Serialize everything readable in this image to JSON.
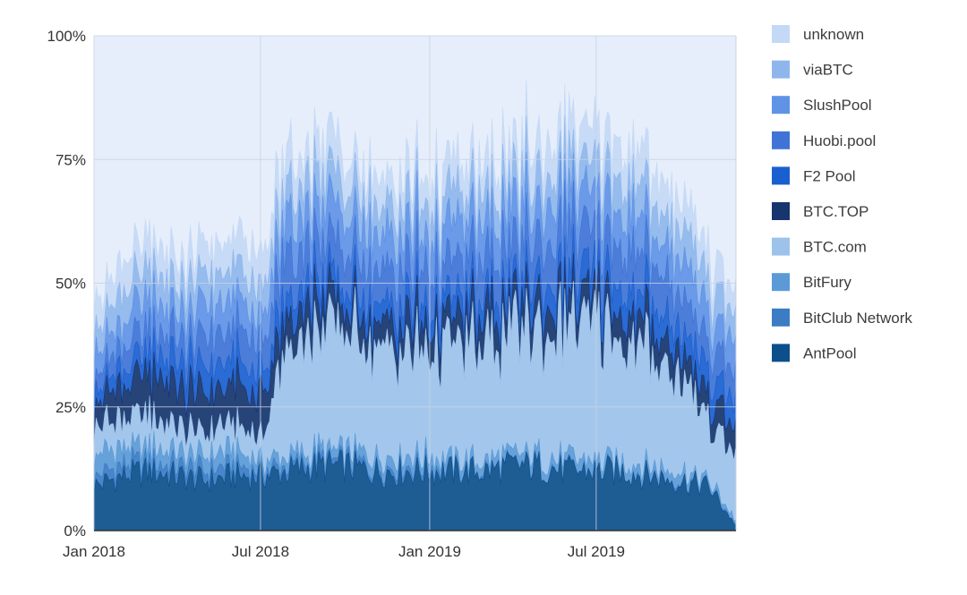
{
  "chart_data": {
    "type": "area",
    "stacked": true,
    "ylim": [
      0,
      100
    ],
    "y_ticks": [
      "0%",
      "25%",
      "50%",
      "75%",
      "100%"
    ],
    "x_ticks": [
      {
        "label": "Jan 2018",
        "date": "2018-01-01"
      },
      {
        "label": "Jul 2018",
        "date": "2018-07-01"
      },
      {
        "label": "Jan 2019",
        "date": "2019-01-01"
      },
      {
        "label": "Jul 2019",
        "date": "2019-07-01"
      }
    ],
    "x_range": [
      "2018-01-01",
      "2019-11-30"
    ],
    "grid": true,
    "legend_position": "right",
    "x": [
      "2018-01-01",
      "2018-02-01",
      "2018-03-01",
      "2018-04-01",
      "2018-05-01",
      "2018-06-01",
      "2018-07-01",
      "2018-08-01",
      "2018-09-01",
      "2018-10-01",
      "2018-11-01",
      "2018-12-01",
      "2019-01-01",
      "2019-02-01",
      "2019-03-01",
      "2019-04-01",
      "2019-05-01",
      "2019-06-01",
      "2019-07-01",
      "2019-08-01",
      "2019-09-01",
      "2019-10-01",
      "2019-11-01",
      "2019-11-30"
    ],
    "series": [
      {
        "name": "AntPool",
        "color": "#0d4f8b",
        "values": [
          9,
          11,
          12,
          11,
          10,
          11,
          11,
          12,
          13,
          13,
          12,
          12,
          12,
          12,
          12,
          13,
          13,
          12,
          12,
          12,
          11,
          10,
          9,
          1
        ]
      },
      {
        "name": "BitClub Network",
        "color": "#3b7cc4",
        "values": [
          2,
          2,
          2,
          2,
          2,
          2,
          1,
          1,
          1,
          1,
          1,
          1,
          1,
          0,
          0,
          0,
          0,
          0,
          0,
          0,
          0,
          0,
          0,
          0
        ]
      },
      {
        "name": "BitFury",
        "color": "#5b9ad6",
        "values": [
          4,
          4,
          3,
          3,
          3,
          3,
          2,
          2,
          2,
          2,
          2,
          2,
          2,
          2,
          2,
          2,
          2,
          2,
          2,
          2,
          2,
          2,
          1,
          1
        ]
      },
      {
        "name": "BTC.com",
        "color": "#9dc3ea",
        "values": [
          6,
          6,
          6,
          5,
          5,
          5,
          5,
          23,
          24,
          24,
          23,
          22,
          22,
          23,
          23,
          24,
          26,
          27,
          27,
          25,
          23,
          20,
          12,
          13
        ]
      },
      {
        "name": "BTC.TOP",
        "color": "#17356e",
        "values": [
          5,
          6,
          8,
          8,
          8,
          8,
          8,
          6,
          6,
          5,
          5,
          5,
          5,
          5,
          6,
          5,
          5,
          5,
          5,
          5,
          5,
          5,
          5,
          5
        ]
      },
      {
        "name": "F2 Pool",
        "color": "#1a5fd0",
        "values": [
          3,
          3,
          4,
          5,
          5,
          5,
          5,
          4,
          4,
          4,
          4,
          4,
          4,
          4,
          4,
          4,
          5,
          5,
          5,
          5,
          5,
          5,
          5,
          5
        ]
      },
      {
        "name": "Huobi.pool",
        "color": "#3f74d6",
        "values": [
          3,
          4,
          5,
          5,
          6,
          6,
          7,
          8,
          8,
          7,
          7,
          7,
          7,
          7,
          8,
          8,
          8,
          9,
          8,
          8,
          8,
          7,
          6,
          6
        ]
      },
      {
        "name": "SlushPool",
        "color": "#5f93e6",
        "values": [
          5,
          5,
          6,
          5,
          6,
          6,
          6,
          7,
          7,
          7,
          7,
          7,
          7,
          7,
          7,
          7,
          7,
          7,
          7,
          7,
          7,
          7,
          6,
          6
        ]
      },
      {
        "name": "viaBTC",
        "color": "#8fb6ec",
        "values": [
          5,
          6,
          6,
          5,
          6,
          6,
          6,
          6,
          6,
          6,
          6,
          6,
          6,
          6,
          6,
          6,
          6,
          6,
          6,
          6,
          6,
          6,
          6,
          6
        ]
      },
      {
        "name": "unknown",
        "color": "#c4d9f6",
        "values": [
          5,
          6,
          6,
          5,
          6,
          6,
          7,
          7,
          7,
          6,
          6,
          6,
          6,
          6,
          6,
          6,
          7,
          7,
          7,
          7,
          7,
          6,
          6,
          5
        ]
      }
    ],
    "remainder_color": "#e6eefb",
    "legend_order": [
      "unknown",
      "viaBTC",
      "SlushPool",
      "Huobi.pool",
      "F2 Pool",
      "BTC.TOP",
      "BTC.com",
      "BitFury",
      "BitClub Network",
      "AntPool"
    ]
  }
}
